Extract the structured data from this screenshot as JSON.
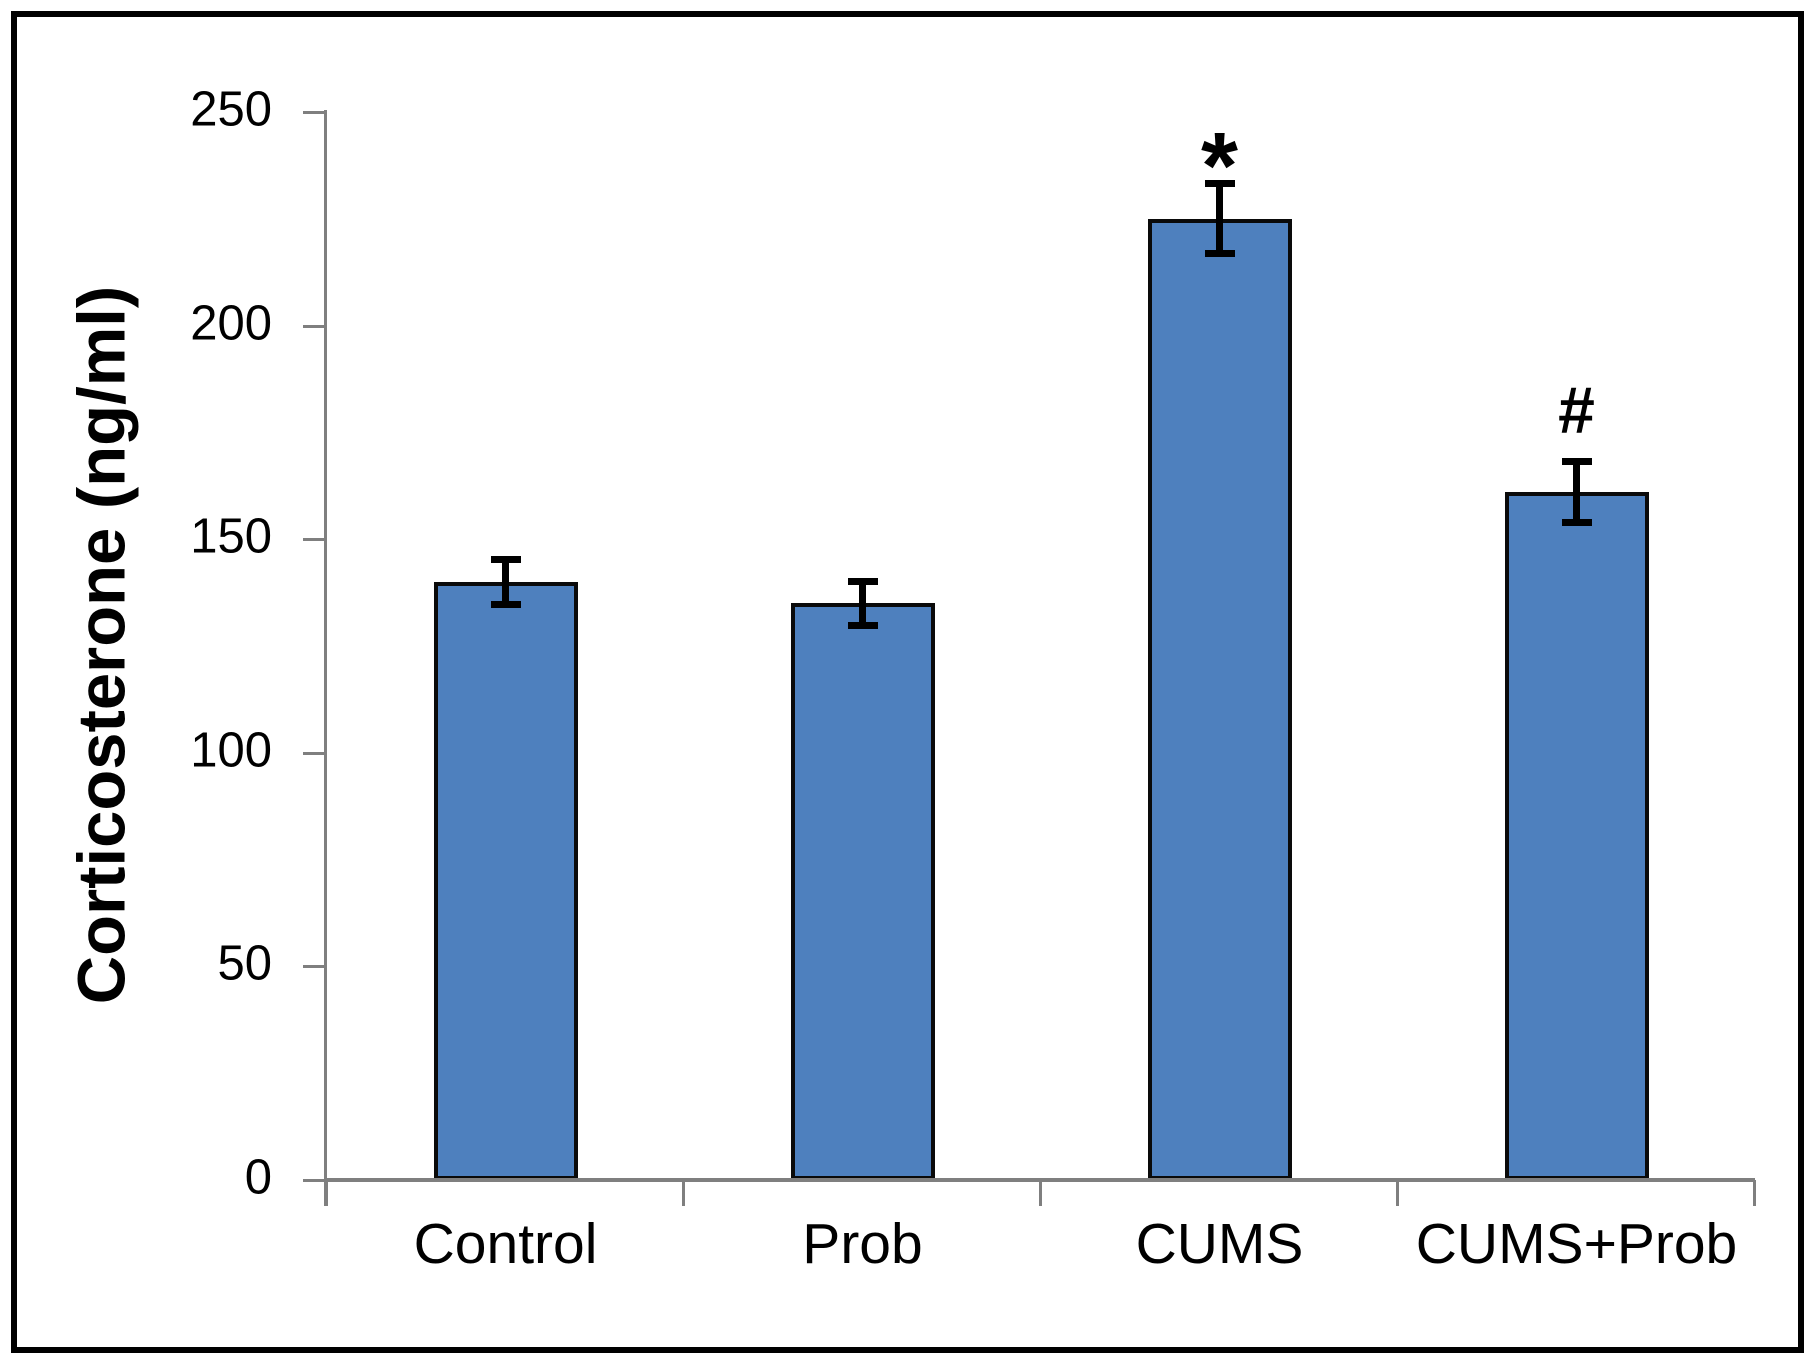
{
  "chart_data": {
    "type": "bar",
    "title": "",
    "xlabel": "",
    "ylabel": "Corticosterone (ng/ml)",
    "categories": [
      "Control",
      "Prob",
      "CUMS",
      "CUMS+Prob"
    ],
    "values": [
      140,
      135,
      225,
      161
    ],
    "errors": [
      6,
      6,
      9,
      8
    ],
    "annotations": [
      "",
      "",
      "*",
      "#"
    ],
    "ylim": [
      0,
      250
    ],
    "yticks": [
      0,
      50,
      100,
      150,
      200,
      250
    ],
    "grid": false,
    "legend": null,
    "bar_fill_color": "#4E80BE",
    "bar_border_color": "#0a0a0a",
    "error_bar_color": "#000000",
    "axis_color": "#7f7f7f",
    "text_color": "#000000",
    "figure_border_color": "#000000",
    "background_color": "#ffffff"
  }
}
